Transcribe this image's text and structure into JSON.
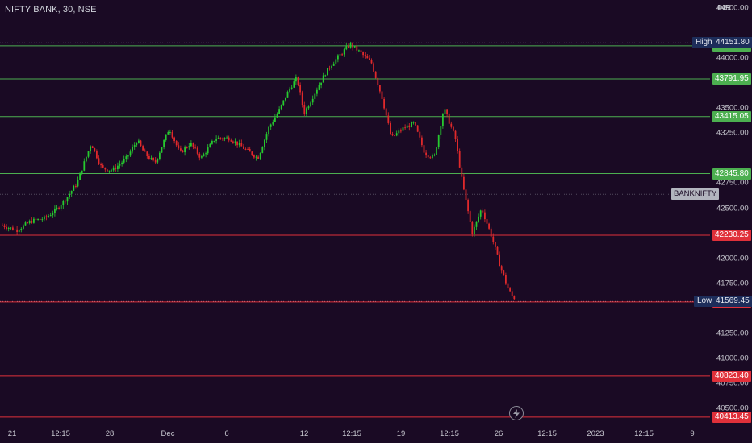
{
  "chart_title": "NIFTY BANK, 30, NSE",
  "currency": "INR",
  "symbol_tag": "BANKNIFTY",
  "colors": {
    "background": "#1a0a24",
    "up_candle": "#26c92f",
    "down_candle": "#e0292b",
    "support_line": "#4caf50",
    "resistance_line": "#e0303a",
    "high_low_tag": "#1d2d5a"
  },
  "price_ticks": [
    "44500.00",
    "44000.00",
    "43750.00",
    "43500.00",
    "43250.00",
    "42750.00",
    "42500.00",
    "42000.00",
    "41750.00",
    "41250.00",
    "41000.00",
    "40750.00",
    "40500.00"
  ],
  "price_axis_values": [
    44500,
    44000,
    43750,
    43500,
    43250,
    42750,
    42500,
    42000,
    41750,
    41250,
    41000,
    40750,
    40500
  ],
  "high": {
    "label": "High",
    "value": "44151.80",
    "price": 44151.8
  },
  "low": {
    "label": "Low",
    "value": "41569.45",
    "price": 41569.45
  },
  "levels": [
    {
      "value": "44121.95",
      "price": 44121.95,
      "type": "green"
    },
    {
      "value": "43791.95",
      "price": 43791.95,
      "type": "green"
    },
    {
      "value": "43415.05",
      "price": 43415.05,
      "type": "green"
    },
    {
      "value": "42845.80",
      "price": 42845.8,
      "type": "green"
    },
    {
      "value": "42230.25",
      "price": 42230.25,
      "type": "red"
    },
    {
      "value": "41563.90",
      "price": 41563.9,
      "type": "red"
    },
    {
      "value": "40823.40",
      "price": 40823.4,
      "type": "red"
    },
    {
      "value": "40413.45",
      "price": 40413.45,
      "type": "red"
    }
  ],
  "last_price": 42640,
  "time_ticks": [
    "21",
    "12:15",
    "28",
    "Dec",
    "6",
    "12",
    "12:15",
    "19",
    "12:15",
    "26",
    "12:15",
    "2023",
    "12:15",
    "9"
  ],
  "chart_data": {
    "type": "candlestick",
    "symbol": "NIFTY BANK",
    "interval": "30",
    "exchange": "NSE",
    "y_range": [
      40340,
      44580
    ],
    "path_points": [
      [
        42330,
        0.0
      ],
      [
        42280,
        0.02
      ],
      [
        42370,
        0.04
      ],
      [
        42400,
        0.06
      ],
      [
        42480,
        0.075
      ],
      [
        42600,
        0.09
      ],
      [
        42750,
        0.105
      ],
      [
        43150,
        0.125
      ],
      [
        42900,
        0.14
      ],
      [
        42880,
        0.155
      ],
      [
        43000,
        0.175
      ],
      [
        43180,
        0.19
      ],
      [
        43050,
        0.2
      ],
      [
        42950,
        0.215
      ],
      [
        43300,
        0.235
      ],
      [
        43050,
        0.25
      ],
      [
        43150,
        0.265
      ],
      [
        43000,
        0.28
      ],
      [
        43200,
        0.3
      ],
      [
        43200,
        0.32
      ],
      [
        43100,
        0.34
      ],
      [
        43000,
        0.36
      ],
      [
        43300,
        0.375
      ],
      [
        43480,
        0.39
      ],
      [
        43700,
        0.405
      ],
      [
        43800,
        0.415
      ],
      [
        43450,
        0.425
      ],
      [
        43650,
        0.44
      ],
      [
        43850,
        0.455
      ],
      [
        43950,
        0.465
      ],
      [
        44140,
        0.49
      ],
      [
        44050,
        0.505
      ],
      [
        43950,
        0.52
      ],
      [
        43600,
        0.535
      ],
      [
        43200,
        0.548
      ],
      [
        43300,
        0.565
      ],
      [
        43350,
        0.58
      ],
      [
        43050,
        0.595
      ],
      [
        43000,
        0.608
      ],
      [
        43500,
        0.622
      ],
      [
        43200,
        0.638
      ],
      [
        42750,
        0.648
      ],
      [
        42250,
        0.662
      ],
      [
        42500,
        0.675
      ],
      [
        42200,
        0.69
      ],
      [
        41950,
        0.7
      ],
      [
        41700,
        0.712
      ],
      [
        41620,
        0.718
      ],
      [
        41600,
        0.722
      ],
      [
        42050,
        0.728
      ],
      [
        42300,
        0.74
      ],
      [
        42640,
        0.755
      ]
    ]
  }
}
